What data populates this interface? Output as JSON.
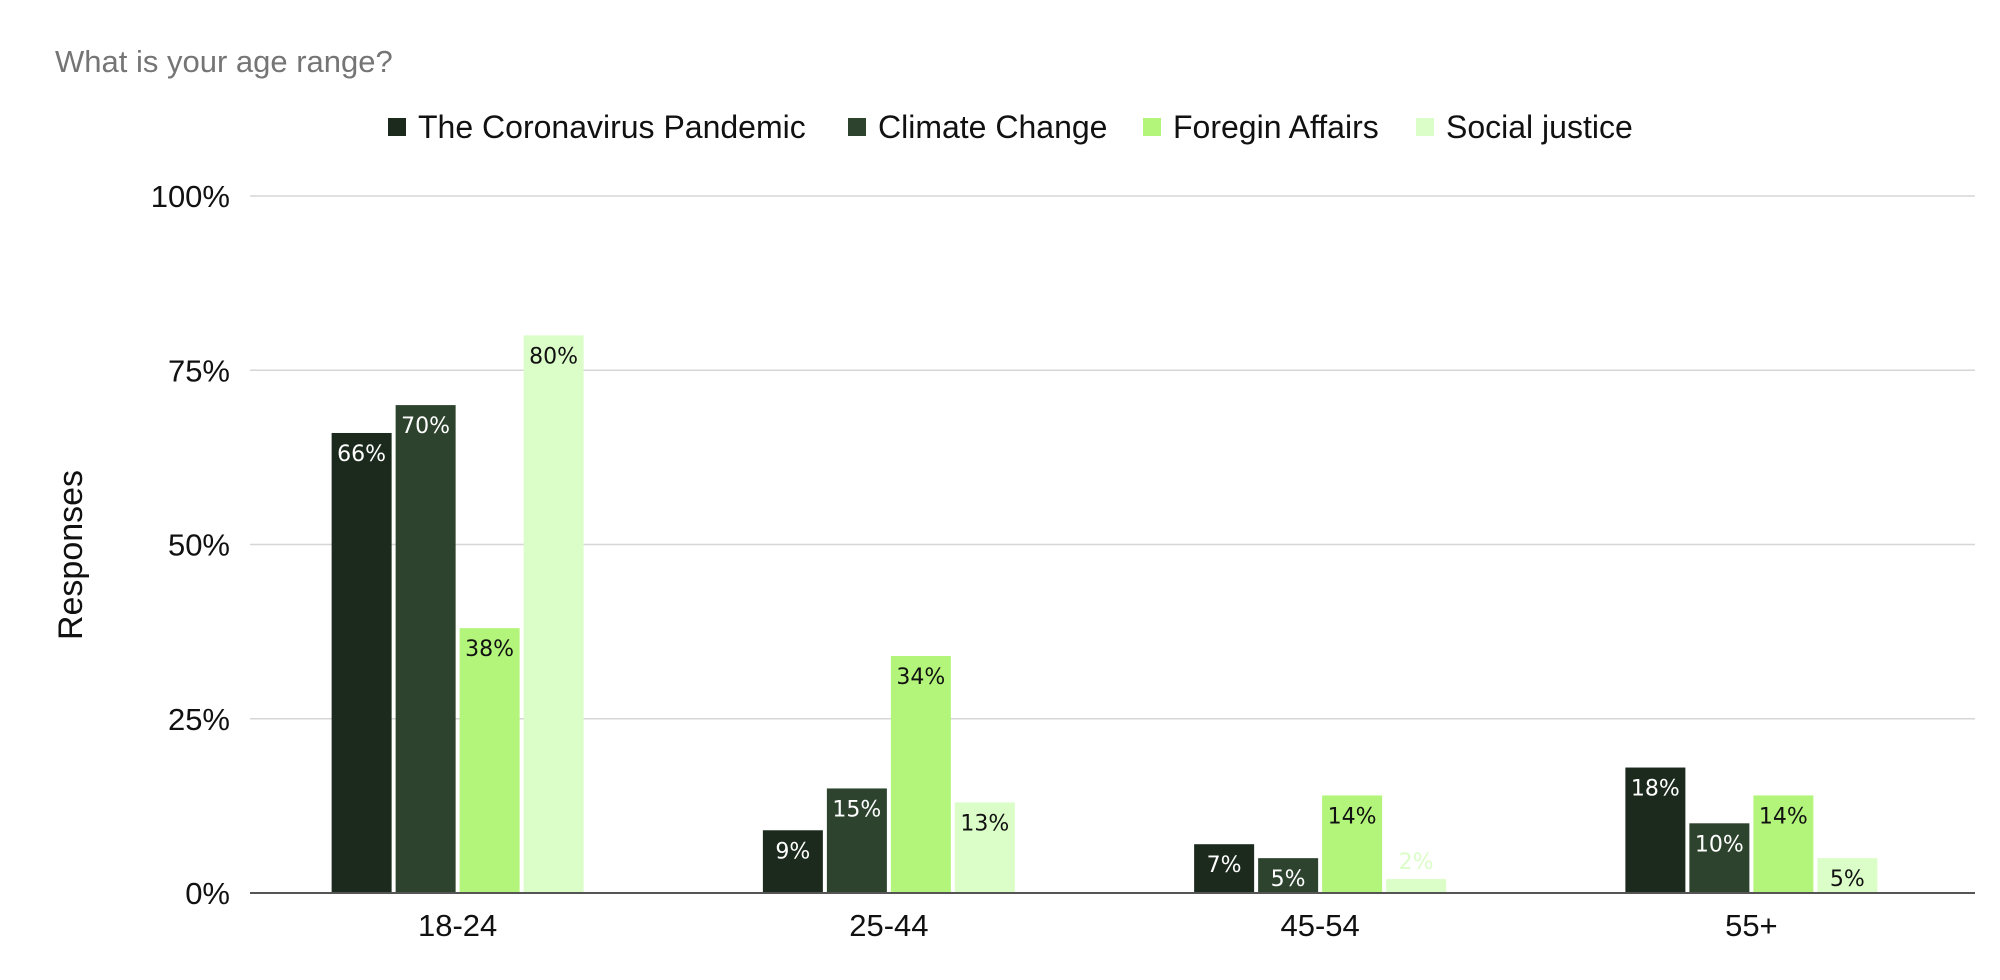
{
  "chart_data": {
    "type": "bar",
    "title": "What is your age range?",
    "xlabel": "",
    "ylabel": "Responses",
    "categories": [
      "18-24",
      "25-44",
      "45-54",
      "55+"
    ],
    "y_ticks": [
      "0%",
      "25%",
      "50%",
      "75%",
      "100%"
    ],
    "ylim": [
      0,
      100
    ],
    "grid": true,
    "legend_position": "top",
    "series": [
      {
        "name": "The Coronavirus Pandemic",
        "color": "#1b2a1c",
        "label_color": "#ffffff",
        "values": [
          66,
          9,
          7,
          18
        ],
        "labels": [
          "66%",
          "9%",
          "7%",
          "18%"
        ]
      },
      {
        "name": "Climate Change",
        "color": "#2d432e",
        "label_color": "#ffffff",
        "values": [
          70,
          15,
          5,
          10
        ],
        "labels": [
          "70%",
          "15%",
          "5%",
          "10%"
        ]
      },
      {
        "name": "Foregin Affairs",
        "color": "#b3f57b",
        "label_color": "#111111",
        "values": [
          38,
          34,
          14,
          14
        ],
        "labels": [
          "38%",
          "34%",
          "14%",
          "14%"
        ]
      },
      {
        "name": "Social justice",
        "color": "#dbfdc8",
        "label_color": "#111111",
        "values": [
          80,
          13,
          2,
          5
        ],
        "labels": [
          "80%",
          "13%",
          "2%",
          "5%"
        ]
      }
    ]
  }
}
